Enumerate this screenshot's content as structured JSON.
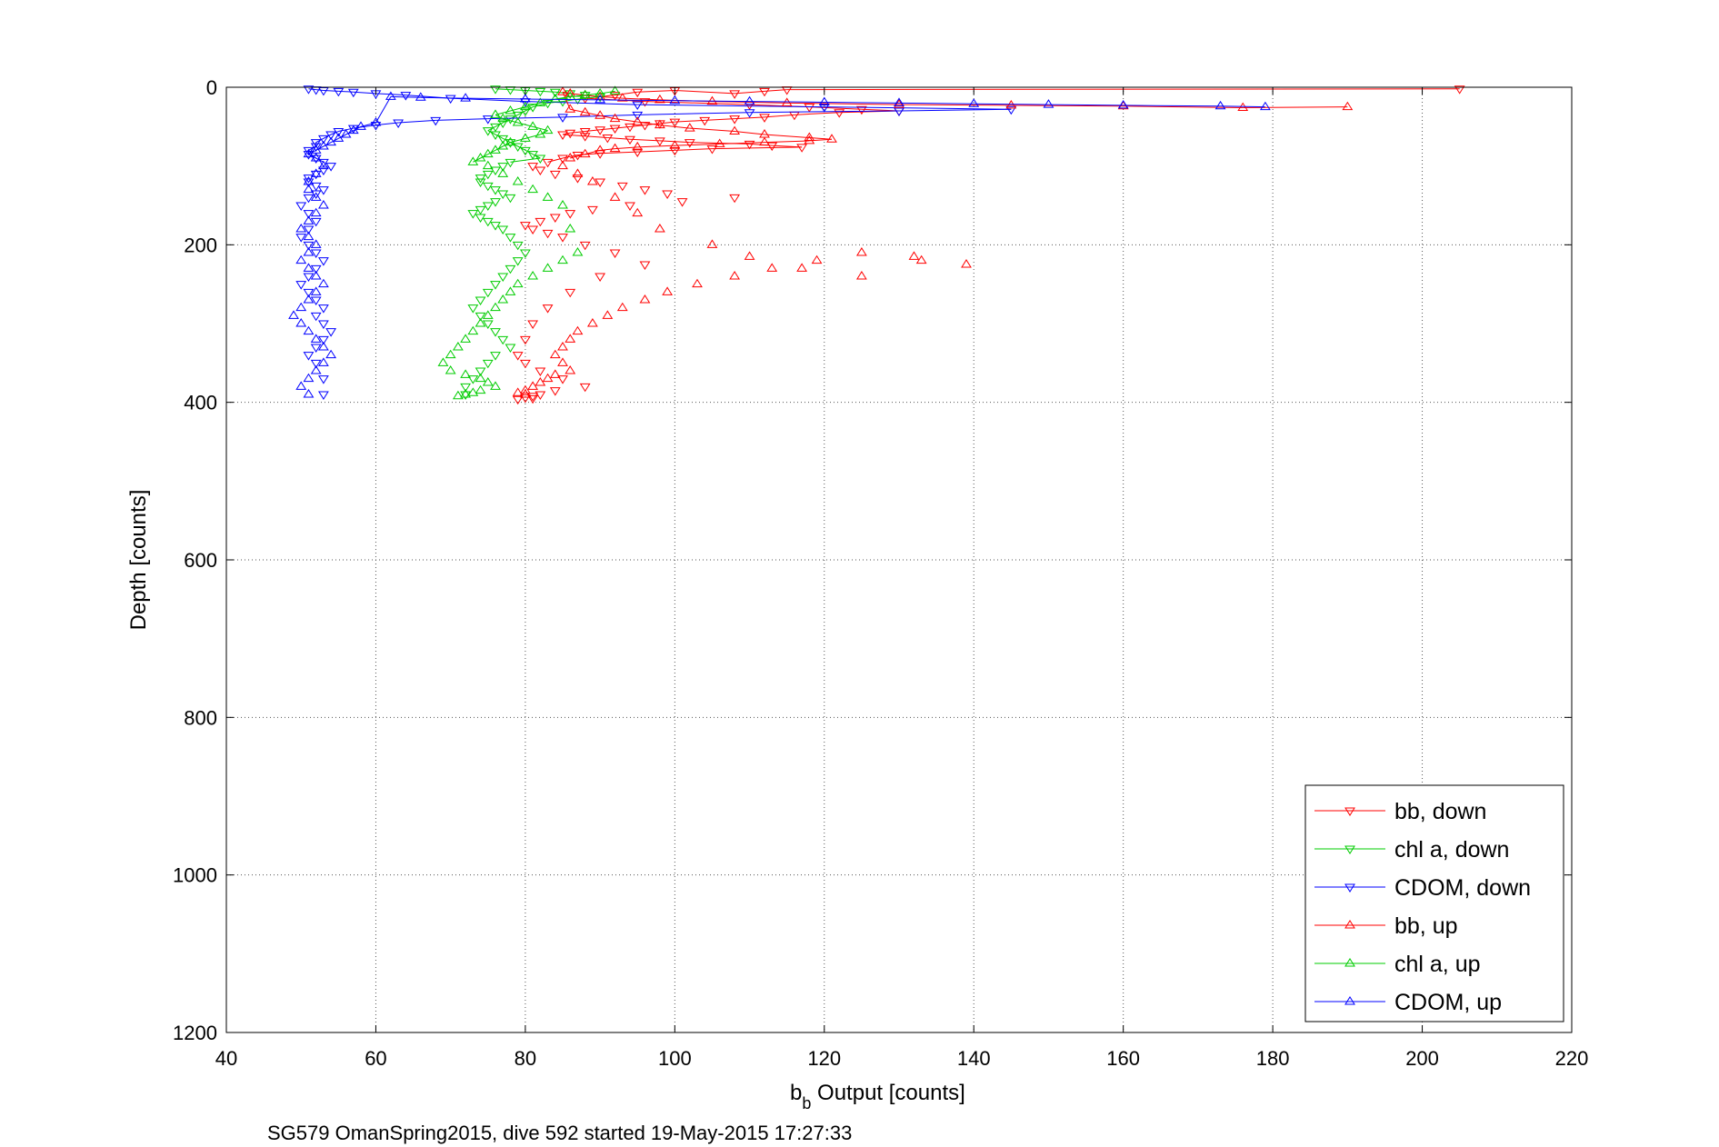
{
  "chart_data": {
    "type": "scatter",
    "xlabel_main": "b",
    "xlabel_sub": "b",
    "xlabel_rest": " Output [counts]",
    "ylabel": "Depth [counts]",
    "footer": "SG579 OmanSpring2015, dive 592 started 19-May-2015 17:27:33",
    "xlim": [
      40,
      220
    ],
    "ylim": [
      0,
      1200
    ],
    "y_reversed": true,
    "grid": true,
    "legend_position": "bottom-right",
    "xticks": [
      "40",
      "60",
      "80",
      "100",
      "120",
      "140",
      "160",
      "180",
      "200",
      "220"
    ],
    "yticks": [
      "0",
      "200",
      "400",
      "600",
      "800",
      "1000",
      "1200"
    ],
    "series": [
      {
        "name": "bb, down",
        "color": "#ff0000",
        "marker": "triangle-down",
        "x": [
          205,
          115,
          112,
          108,
          100,
          95,
          92,
          88,
          96,
          110,
          118,
          125,
          130,
          122,
          116,
          112,
          108,
          104,
          100,
          98,
          96,
          94,
          92,
          90,
          88,
          86,
          85,
          88,
          91,
          94,
          98,
          102,
          110,
          113,
          117,
          105,
          100,
          95,
          90,
          87,
          85,
          83,
          81,
          82,
          84,
          87,
          90,
          93,
          96,
          99,
          108,
          101,
          94,
          89,
          86,
          84,
          82,
          80,
          81,
          83,
          85,
          88,
          92,
          96,
          90,
          86,
          83,
          81,
          80,
          79,
          80,
          82,
          85,
          88,
          84,
          82,
          81,
          80,
          81,
          79
        ],
        "y": [
          2,
          3,
          5,
          8,
          4,
          6,
          10,
          14,
          18,
          22,
          25,
          28,
          30,
          32,
          35,
          38,
          40,
          42,
          44,
          46,
          48,
          50,
          52,
          54,
          56,
          58,
          60,
          62,
          64,
          66,
          68,
          70,
          72,
          74,
          76,
          78,
          80,
          82,
          84,
          86,
          90,
          95,
          100,
          105,
          110,
          115,
          120,
          125,
          130,
          135,
          140,
          145,
          150,
          155,
          160,
          165,
          170,
          175,
          180,
          185,
          190,
          200,
          210,
          225,
          240,
          260,
          280,
          300,
          320,
          340,
          350,
          360,
          370,
          380,
          385,
          390,
          392,
          394,
          395,
          396
        ]
      },
      {
        "name": "chl a, down",
        "color": "#00cc00",
        "marker": "triangle-down",
        "x": [
          76,
          78,
          80,
          82,
          84,
          86,
          88,
          90,
          87,
          85,
          83,
          81,
          80,
          79,
          78,
          77,
          76,
          75,
          76,
          77,
          78,
          79,
          80,
          81,
          82,
          78,
          77,
          76,
          75,
          74,
          74,
          75,
          76,
          77,
          78,
          76,
          75,
          74,
          73,
          74,
          75,
          76,
          77,
          78,
          79,
          80,
          79,
          78,
          77,
          76,
          75,
          74,
          73,
          74,
          75,
          76,
          77,
          78,
          76,
          75,
          74,
          73,
          72,
          72
        ],
        "y": [
          2,
          3,
          4,
          5,
          6,
          8,
          10,
          12,
          15,
          18,
          20,
          25,
          30,
          35,
          40,
          45,
          50,
          55,
          60,
          65,
          70,
          75,
          80,
          85,
          90,
          95,
          100,
          105,
          110,
          115,
          120,
          125,
          130,
          135,
          140,
          145,
          150,
          155,
          160,
          165,
          170,
          175,
          180,
          190,
          200,
          210,
          220,
          230,
          240,
          250,
          260,
          270,
          280,
          290,
          300,
          310,
          320,
          330,
          340,
          350,
          360,
          370,
          380,
          390
        ]
      },
      {
        "name": "CDOM, down",
        "color": "#0000ff",
        "marker": "triangle-down",
        "x": [
          51,
          52,
          53,
          55,
          57,
          60,
          64,
          70,
          80,
          95,
          120,
          145,
          130,
          110,
          95,
          85,
          75,
          68,
          63,
          60,
          57,
          55,
          54,
          53,
          52,
          52,
          51,
          51,
          52,
          53,
          54,
          53,
          52,
          51,
          51,
          52,
          53,
          52,
          51,
          50,
          51,
          52,
          51,
          50,
          51,
          52,
          53,
          52,
          51,
          50,
          51,
          52,
          53,
          52,
          53,
          54,
          53,
          52,
          51,
          52,
          53,
          53
        ],
        "y": [
          2,
          3,
          4,
          5,
          6,
          8,
          10,
          14,
          18,
          22,
          25,
          28,
          30,
          32,
          35,
          38,
          40,
          42,
          45,
          48,
          52,
          56,
          60,
          65,
          70,
          75,
          80,
          85,
          90,
          95,
          100,
          105,
          110,
          115,
          120,
          125,
          130,
          135,
          140,
          150,
          160,
          170,
          180,
          190,
          200,
          210,
          220,
          230,
          240,
          250,
          260,
          270,
          280,
          290,
          300,
          310,
          320,
          330,
          340,
          350,
          370,
          390
        ]
      },
      {
        "name": "bb, up",
        "color": "#ff0000",
        "marker": "triangle-up",
        "x": [
          190,
          176,
          160,
          145,
          130,
          115,
          105,
          98,
          93,
          90,
          88,
          86,
          85,
          86,
          88,
          90,
          92,
          95,
          98,
          102,
          108,
          112,
          118,
          121,
          118,
          112,
          106,
          100,
          95,
          92,
          90,
          88,
          86,
          85,
          87,
          89,
          92,
          95,
          98,
          105,
          110,
          117,
          125,
          133,
          139,
          132,
          125,
          119,
          113,
          108,
          103,
          99,
          96,
          93,
          91,
          89,
          87,
          86,
          85,
          84,
          85,
          86,
          84,
          83,
          82,
          81,
          80,
          79,
          80
        ],
        "y": [
          25,
          26,
          24,
          23,
          22,
          20,
          18,
          16,
          14,
          12,
          10,
          8,
          6,
          28,
          32,
          36,
          40,
          44,
          48,
          52,
          56,
          60,
          64,
          66,
          68,
          70,
          72,
          74,
          76,
          78,
          80,
          85,
          90,
          100,
          110,
          120,
          140,
          160,
          180,
          200,
          215,
          230,
          240,
          220,
          225,
          215,
          210,
          220,
          230,
          240,
          250,
          260,
          270,
          280,
          290,
          300,
          310,
          320,
          330,
          340,
          350,
          360,
          365,
          370,
          375,
          380,
          385,
          388,
          390
        ]
      },
      {
        "name": "chl a, up",
        "color": "#00cc00",
        "marker": "triangle-up",
        "x": [
          92,
          90,
          88,
          86,
          84,
          82,
          80,
          78,
          76,
          77,
          79,
          81,
          83,
          82,
          80,
          78,
          77,
          76,
          75,
          74,
          73,
          75,
          77,
          79,
          81,
          83,
          85,
          86,
          87,
          85,
          83,
          81,
          79,
          78,
          77,
          76,
          75,
          74,
          73,
          72,
          71,
          70,
          69,
          70,
          72,
          74,
          75,
          76,
          74,
          73,
          72,
          71
        ],
        "y": [
          5,
          8,
          10,
          12,
          15,
          20,
          25,
          30,
          35,
          40,
          45,
          50,
          55,
          60,
          65,
          70,
          75,
          80,
          85,
          90,
          95,
          100,
          110,
          120,
          130,
          140,
          150,
          180,
          210,
          220,
          230,
          240,
          250,
          260,
          270,
          280,
          290,
          300,
          310,
          320,
          330,
          340,
          350,
          360,
          365,
          370,
          375,
          380,
          385,
          388,
          390,
          392
        ]
      },
      {
        "name": "CDOM, up",
        "color": "#0000ff",
        "marker": "triangle-up",
        "x": [
          179,
          173,
          160,
          150,
          140,
          130,
          120,
          110,
          100,
          90,
          80,
          72,
          66,
          62,
          60,
          58,
          57,
          56,
          55,
          54,
          53,
          52,
          51,
          52,
          53,
          52,
          51,
          51,
          52,
          53,
          52,
          51,
          50,
          51,
          52,
          51,
          50,
          51,
          52,
          53,
          52,
          51,
          50,
          49,
          50,
          51,
          52,
          53,
          54,
          53,
          52,
          51,
          50,
          51
        ],
        "y": [
          25,
          24,
          23,
          22,
          21,
          20,
          19,
          18,
          17,
          16,
          15,
          14,
          13,
          12,
          45,
          50,
          55,
          60,
          65,
          70,
          75,
          80,
          85,
          90,
          100,
          110,
          120,
          130,
          140,
          150,
          160,
          170,
          180,
          190,
          200,
          210,
          220,
          230,
          240,
          250,
          260,
          270,
          280,
          290,
          300,
          310,
          320,
          330,
          340,
          350,
          360,
          370,
          380,
          390
        ]
      }
    ]
  }
}
